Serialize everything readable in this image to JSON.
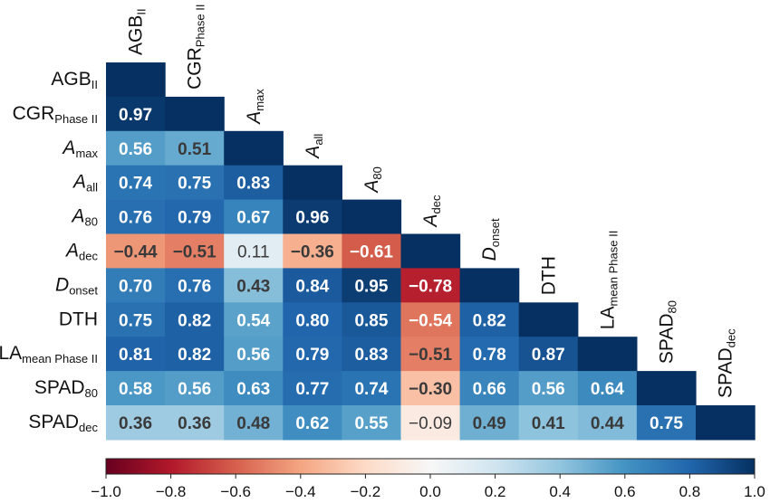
{
  "chart_data": {
    "type": "heatmap",
    "variables": [
      {
        "main": "AGB",
        "sub": "II",
        "italic": false
      },
      {
        "main": "CGR",
        "sub": "Phase II",
        "italic": false
      },
      {
        "main": "A",
        "sub": "max",
        "italic": true
      },
      {
        "main": "A",
        "sub": "all",
        "italic": true
      },
      {
        "main": "A",
        "sub": "80",
        "italic": true
      },
      {
        "main": "A",
        "sub": "dec",
        "italic": true
      },
      {
        "main": "D",
        "sub": "onset",
        "italic": true
      },
      {
        "main": "DTH",
        "sub": "",
        "italic": false
      },
      {
        "main": "LA",
        "sub": "mean Phase II",
        "italic": false
      },
      {
        "main": "SPAD",
        "sub": "80",
        "italic": false
      },
      {
        "main": "SPAD",
        "sub": "dec",
        "italic": false
      }
    ],
    "lower_triangle": [
      [],
      [
        0.97
      ],
      [
        0.56,
        0.51
      ],
      [
        0.74,
        0.75,
        0.83
      ],
      [
        0.76,
        0.79,
        0.67,
        0.96
      ],
      [
        -0.44,
        -0.51,
        0.11,
        -0.36,
        -0.61
      ],
      [
        0.7,
        0.76,
        0.43,
        0.84,
        0.95,
        -0.78
      ],
      [
        0.75,
        0.82,
        0.54,
        0.8,
        0.85,
        -0.54,
        0.82
      ],
      [
        0.81,
        0.82,
        0.56,
        0.79,
        0.83,
        -0.51,
        0.78,
        0.87
      ],
      [
        0.58,
        0.56,
        0.63,
        0.77,
        0.74,
        -0.3,
        0.66,
        0.56,
        0.64
      ],
      [
        0.36,
        0.36,
        0.48,
        0.62,
        0.55,
        -0.09,
        0.49,
        0.41,
        0.44,
        0.75
      ]
    ],
    "cell_labels": [
      [],
      [
        "0.97"
      ],
      [
        "0.56",
        "0.51"
      ],
      [
        "0.74",
        "0.75",
        "0.83"
      ],
      [
        "0.76",
        "0.79",
        "0.67",
        "0.96"
      ],
      [
        "−0.44",
        "−0.51",
        "0.11",
        "−0.36",
        "−0.61"
      ],
      [
        "0.70",
        "0.76",
        "0.43",
        "0.84",
        "0.95",
        "−0.78"
      ],
      [
        "0.75",
        "0.82",
        "0.54",
        "0.80",
        "0.85",
        "−0.54",
        "0.82"
      ],
      [
        "0.81",
        "0.82",
        "0.56",
        "0.79",
        "0.83",
        "−0.51",
        "0.78",
        "0.87"
      ],
      [
        "0.58",
        "0.56",
        "0.63",
        "0.77",
        "0.74",
        "−0.30",
        "0.66",
        "0.56",
        "0.64"
      ],
      [
        "0.36",
        "0.36",
        "0.48",
        "0.62",
        "0.55",
        "−0.09",
        "0.49",
        "0.41",
        "0.44",
        "0.75"
      ]
    ],
    "diagonal_value": 1.0,
    "colorscale": {
      "min": -1.0,
      "max": 1.0,
      "ticks": [
        -1.0,
        -0.8,
        -0.6,
        -0.4,
        -0.2,
        0.0,
        0.2,
        0.4,
        0.6,
        0.8,
        1.0
      ],
      "tick_labels": [
        "−1.0",
        "−0.8",
        "−0.6",
        "−0.4",
        "−0.2",
        "0.0",
        "0.2",
        "0.4",
        "0.6",
        "0.8",
        "1.0"
      ],
      "orientation": "horizontal",
      "placement": "bottom",
      "colormap": "RdBu",
      "stops": [
        "#67001f",
        "#b2182b",
        "#d6604d",
        "#f4a582",
        "#fddbc7",
        "#f7f7f7",
        "#d1e5f0",
        "#92c5de",
        "#4393c3",
        "#2166ac",
        "#053061"
      ]
    },
    "title": "",
    "xlabel": "",
    "ylabel": "",
    "grid": false
  }
}
